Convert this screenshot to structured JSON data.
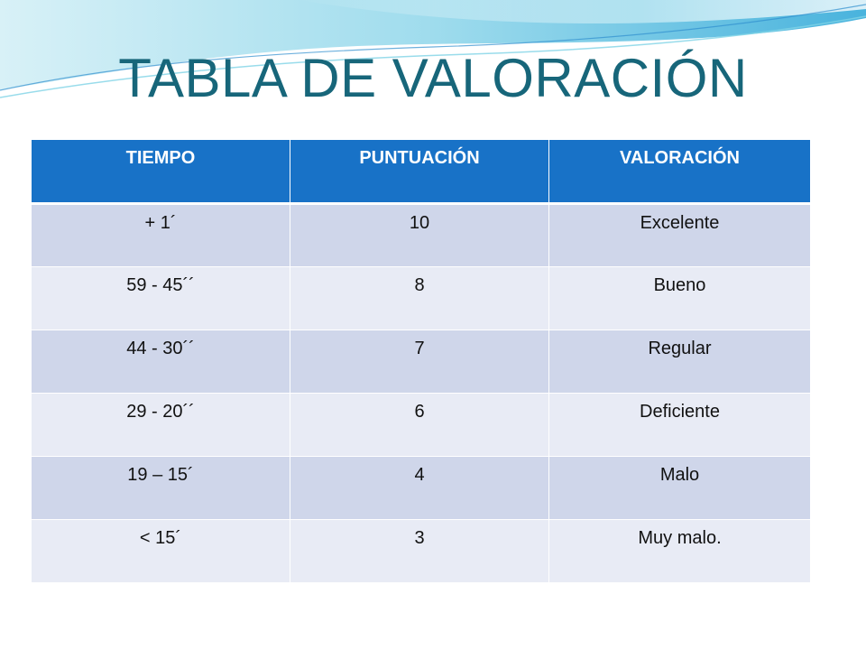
{
  "title": "TABLA DE VALORACIÓN",
  "colors": {
    "title": "#17667a",
    "header_bg": "#1872c7",
    "row_dark": "#cfd6ea",
    "row_light": "#e8ebf5",
    "wave_teal": "#7fd3e6",
    "wave_blue": "#2f8fcf"
  },
  "table": {
    "headers": [
      "TIEMPO",
      "PUNTUACIÓN",
      "VALORACIÓN"
    ],
    "rows": [
      [
        "+ 1´",
        "10",
        "Excelente"
      ],
      [
        "59 - 45´´",
        "8",
        "Bueno"
      ],
      [
        "44 - 30´´",
        "7",
        "Regular"
      ],
      [
        "29 - 20´´",
        "6",
        "Deficiente"
      ],
      [
        "19 – 15´",
        "4",
        "Malo"
      ],
      [
        "< 15´",
        "3",
        "Muy malo."
      ]
    ]
  }
}
